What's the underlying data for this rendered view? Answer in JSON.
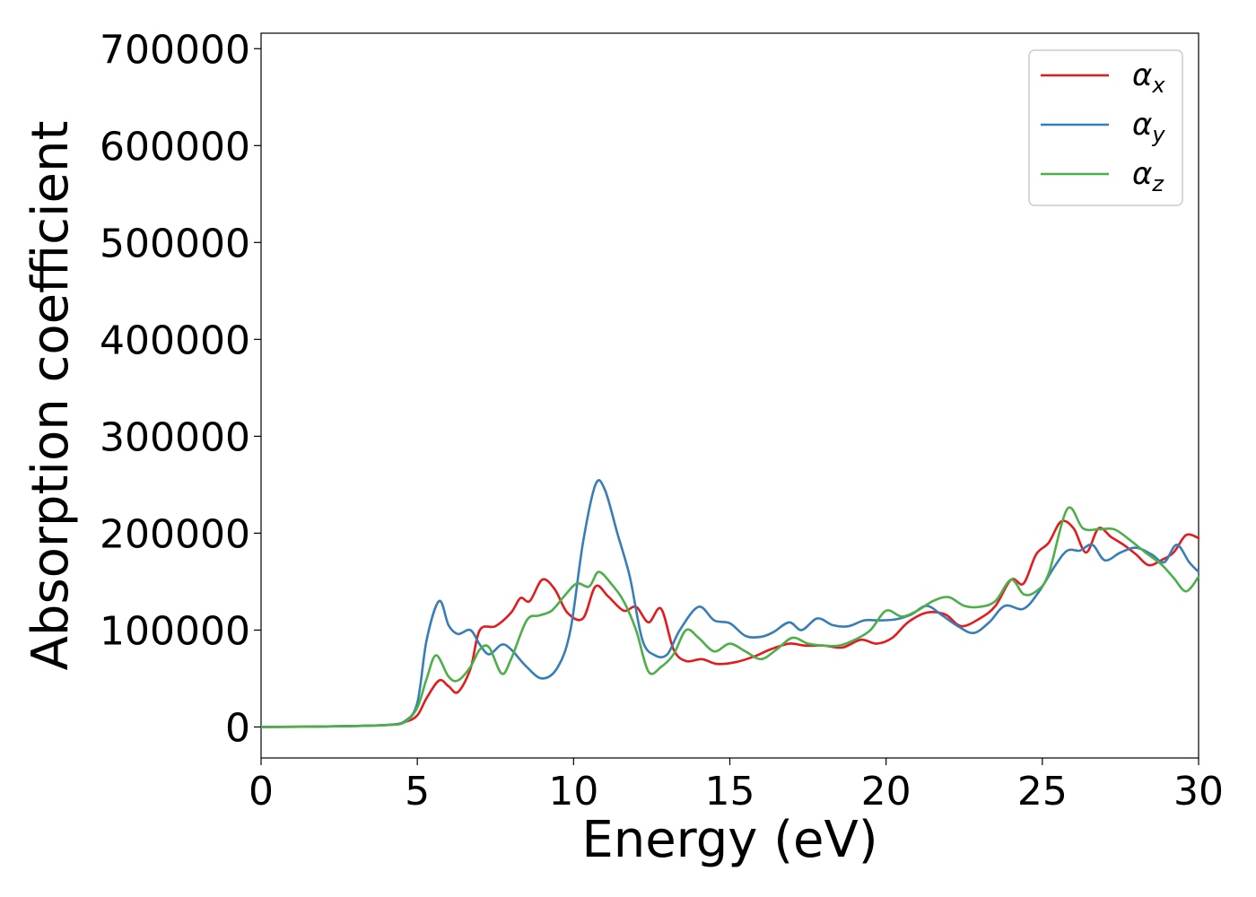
{
  "chart_data": {
    "type": "line",
    "xlabel": "Energy (eV)",
    "ylabel": "Absorption coefficient",
    "xlim": [
      0,
      30
    ],
    "ylim": [
      -32000,
      716000
    ],
    "xticks": [
      0,
      5,
      10,
      15,
      20,
      25,
      30
    ],
    "xtick_labels": [
      "0",
      "5",
      "10",
      "15",
      "20",
      "25",
      "30"
    ],
    "yticks": [
      0,
      100000,
      200000,
      300000,
      400000,
      500000,
      600000,
      700000
    ],
    "ytick_labels": [
      "0",
      "100000",
      "200000",
      "300000",
      "400000",
      "500000",
      "600000",
      "700000"
    ],
    "grid": false,
    "legend_position": "top-right",
    "series": [
      {
        "name": "αx",
        "legend_base": "α",
        "legend_sub": "x",
        "color": "#e41a1c",
        "x": [
          0,
          2,
          4,
          4.6,
          5.0,
          5.3,
          5.7,
          6.0,
          6.3,
          6.7,
          7.0,
          7.5,
          8.0,
          8.3,
          8.6,
          9.0,
          9.4,
          9.8,
          10.3,
          10.7,
          11.1,
          11.6,
          12.0,
          12.4,
          12.8,
          13.2,
          13.6,
          14.1,
          14.6,
          15.2,
          15.8,
          16.3,
          16.9,
          17.4,
          18.0,
          18.6,
          19.2,
          19.7,
          20.2,
          20.7,
          21.3,
          21.9,
          22.4,
          23.0,
          23.5,
          24.0,
          24.4,
          24.8,
          25.2,
          25.6,
          26.0,
          26.4,
          26.8,
          27.2,
          27.6,
          28.0,
          28.4,
          28.8,
          29.2,
          29.6,
          30.0
        ],
        "y": [
          0,
          500,
          2000,
          5000,
          12000,
          30000,
          48000,
          42000,
          36000,
          60000,
          100000,
          104000,
          118000,
          133000,
          130000,
          152000,
          142000,
          118000,
          112000,
          145000,
          135000,
          120000,
          124000,
          108000,
          122000,
          80000,
          68000,
          70000,
          65000,
          67000,
          73000,
          80000,
          86000,
          84000,
          84000,
          82000,
          90000,
          86000,
          92000,
          108000,
          118000,
          116000,
          104000,
          112000,
          125000,
          152000,
          148000,
          178000,
          190000,
          212000,
          205000,
          180000,
          205000,
          196000,
          188000,
          178000,
          167000,
          172000,
          180000,
          198000,
          195000
        ]
      },
      {
        "name": "αy",
        "legend_base": "α",
        "legend_sub": "y",
        "color": "#377eb8",
        "x": [
          0,
          2,
          4,
          4.6,
          5.0,
          5.3,
          5.7,
          6.0,
          6.3,
          6.7,
          7.0,
          7.3,
          7.7,
          8.0,
          8.5,
          9.0,
          9.5,
          9.9,
          10.3,
          10.7,
          11.0,
          11.4,
          11.8,
          12.2,
          12.6,
          13.0,
          13.4,
          14.0,
          14.5,
          15.0,
          15.5,
          16.0,
          16.4,
          16.9,
          17.3,
          17.8,
          18.3,
          18.8,
          19.3,
          19.8,
          20.3,
          20.8,
          21.3,
          21.8,
          22.3,
          22.8,
          23.3,
          23.8,
          24.4,
          24.9,
          25.4,
          25.8,
          26.2,
          26.6,
          27.0,
          27.5,
          28.0,
          28.5,
          28.9,
          29.3,
          29.7,
          30.0
        ],
        "y": [
          0,
          500,
          2000,
          6000,
          25000,
          90000,
          130000,
          105000,
          96000,
          100000,
          85000,
          75000,
          85000,
          80000,
          62000,
          50000,
          62000,
          100000,
          190000,
          250000,
          245000,
          200000,
          155000,
          90000,
          74000,
          75000,
          100000,
          124000,
          110000,
          107000,
          94000,
          93000,
          98000,
          108000,
          100000,
          112000,
          105000,
          104000,
          110000,
          110000,
          111000,
          116000,
          125000,
          115000,
          104000,
          97000,
          108000,
          125000,
          122000,
          140000,
          166000,
          182000,
          182000,
          188000,
          172000,
          180000,
          185000,
          178000,
          170000,
          188000,
          170000,
          160000
        ]
      },
      {
        "name": "αz",
        "legend_base": "α",
        "legend_sub": "z",
        "color": "#4daf4a",
        "x": [
          0,
          2,
          4,
          4.6,
          5.0,
          5.3,
          5.6,
          6.0,
          6.3,
          6.7,
          7.0,
          7.3,
          7.7,
          8.0,
          8.5,
          8.9,
          9.3,
          9.7,
          10.1,
          10.5,
          10.8,
          11.2,
          11.6,
          12.0,
          12.4,
          12.8,
          13.2,
          13.6,
          14.0,
          14.5,
          15.0,
          15.5,
          16.0,
          16.5,
          17.0,
          17.5,
          18.0,
          18.5,
          19.0,
          19.5,
          20.0,
          20.5,
          21.0,
          21.5,
          22.0,
          22.5,
          23.0,
          23.5,
          24.0,
          24.4,
          24.8,
          25.2,
          25.8,
          26.3,
          26.8,
          27.3,
          27.8,
          28.3,
          28.8,
          29.2,
          29.6,
          30.0
        ],
        "y": [
          0,
          500,
          2000,
          5000,
          20000,
          50000,
          74000,
          52000,
          48000,
          62000,
          80000,
          82000,
          55000,
          70000,
          110000,
          115000,
          120000,
          135000,
          148000,
          145000,
          160000,
          148000,
          130000,
          100000,
          57000,
          62000,
          75000,
          100000,
          92000,
          78000,
          86000,
          78000,
          70000,
          80000,
          92000,
          86000,
          84000,
          84000,
          90000,
          100000,
          120000,
          114000,
          120000,
          130000,
          134000,
          125000,
          124000,
          130000,
          152000,
          137000,
          140000,
          158000,
          225000,
          205000,
          204000,
          204000,
          193000,
          180000,
          168000,
          154000,
          140000,
          155000
        ]
      }
    ]
  }
}
